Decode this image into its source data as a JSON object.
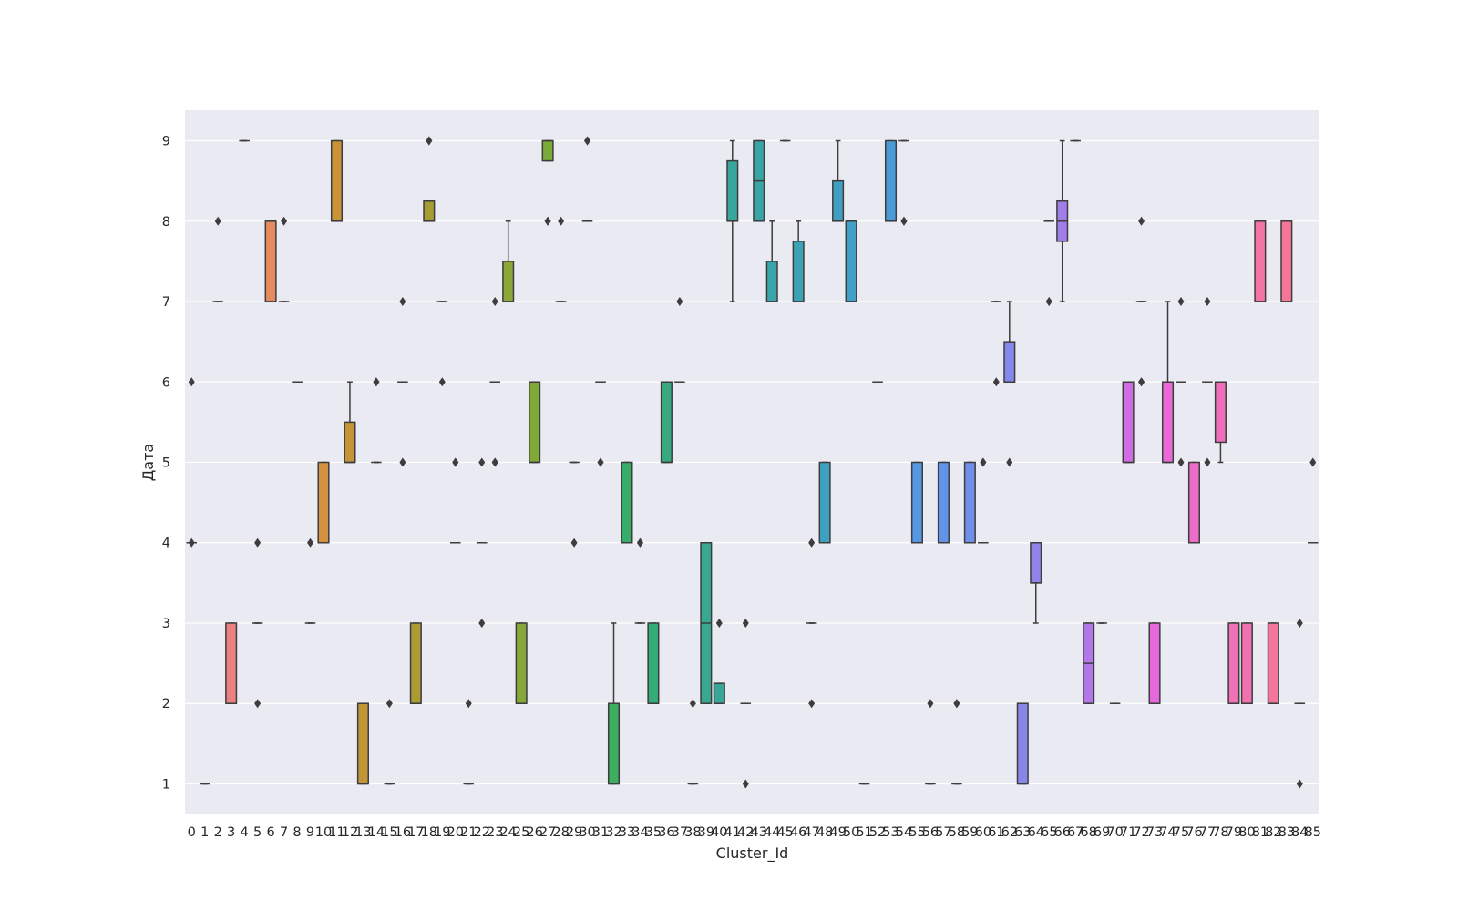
{
  "chart_data": {
    "type": "box",
    "xlabel": "Cluster_Id",
    "ylabel": "Дата",
    "ylim": [
      0.62,
      9.38
    ],
    "yticks": [
      1,
      2,
      3,
      4,
      5,
      6,
      7,
      8,
      9
    ],
    "grid": true,
    "background": "#eaeaf2",
    "categories": [
      "0",
      "1",
      "2",
      "3",
      "4",
      "5",
      "6",
      "7",
      "8",
      "9",
      "10",
      "11",
      "12",
      "13",
      "14",
      "15",
      "16",
      "17",
      "18",
      "19",
      "20",
      "21",
      "22",
      "23",
      "24",
      "25",
      "26",
      "27",
      "28",
      "29",
      "30",
      "31",
      "32",
      "33",
      "34",
      "35",
      "36",
      "37",
      "38",
      "39",
      "40",
      "41",
      "42",
      "43",
      "44",
      "45",
      "46",
      "47",
      "48",
      "49",
      "50",
      "51",
      "52",
      "53",
      "54",
      "55",
      "56",
      "57",
      "58",
      "59",
      "60",
      "61",
      "62",
      "63",
      "64",
      "65",
      "66",
      "67",
      "68",
      "69",
      "70",
      "71",
      "72",
      "73",
      "74",
      "75",
      "76",
      "77",
      "78",
      "79",
      "80",
      "81",
      "82",
      "83",
      "84",
      "85"
    ],
    "boxes": [
      {
        "q1": 4,
        "med": 4,
        "q3": 4,
        "wlo": 4,
        "whi": 4,
        "fliers": [
          6,
          4
        ],
        "color": "#f77189"
      },
      {
        "q1": 1,
        "med": 1,
        "q3": 1,
        "wlo": 1,
        "whi": 1,
        "fliers": [],
        "color": "#f7738a"
      },
      {
        "q1": 7,
        "med": 7,
        "q3": 7,
        "wlo": 7,
        "whi": 7,
        "fliers": [
          8
        ],
        "color": "#f7758b"
      },
      {
        "q1": 2,
        "med": 2,
        "q3": 3,
        "wlo": 2,
        "whi": 3,
        "fliers": [],
        "color": "#e8817f"
      },
      {
        "q1": 9,
        "med": 9,
        "q3": 9,
        "wlo": 9,
        "whi": 9,
        "fliers": [],
        "color": "#e88479"
      },
      {
        "q1": 3,
        "med": 3,
        "q3": 3,
        "wlo": 3,
        "whi": 3,
        "fliers": [
          4,
          2
        ],
        "color": "#e88674"
      },
      {
        "q1": 7,
        "med": 7,
        "q3": 8,
        "wlo": 7,
        "whi": 8,
        "fliers": [],
        "color": "#e48a5f"
      },
      {
        "q1": 7,
        "med": 7,
        "q3": 7,
        "wlo": 7,
        "whi": 7,
        "fliers": [
          8
        ],
        "color": "#e08c55"
      },
      {
        "q1": 6,
        "med": 6,
        "q3": 6,
        "wlo": 6,
        "whi": 6,
        "fliers": [],
        "color": "#dc8f4c"
      },
      {
        "q1": 3,
        "med": 3,
        "q3": 3,
        "wlo": 3,
        "whi": 3,
        "fliers": [
          4
        ],
        "color": "#d7913f"
      },
      {
        "q1": 4,
        "med": 4,
        "q3": 5,
        "wlo": 4,
        "whi": 5,
        "fliers": [],
        "color": "#d49240"
      },
      {
        "q1": 8,
        "med": 8,
        "q3": 9,
        "wlo": 8,
        "whi": 9,
        "fliers": [],
        "color": "#c99337"
      },
      {
        "q1": 5,
        "med": 5,
        "q3": 5.5,
        "wlo": 5,
        "whi": 6,
        "fliers": [],
        "color": "#c59438"
      },
      {
        "q1": 1,
        "med": 1,
        "q3": 2,
        "wlo": 1,
        "whi": 2,
        "fliers": [],
        "color": "#c19637"
      },
      {
        "q1": 5,
        "med": 5,
        "q3": 5,
        "wlo": 5,
        "whi": 5,
        "fliers": [
          6,
          6
        ],
        "color": "#bb9836"
      },
      {
        "q1": 1,
        "med": 1,
        "q3": 1,
        "wlo": 1,
        "whi": 1,
        "fliers": [
          2
        ],
        "color": "#b59a36"
      },
      {
        "q1": 6,
        "med": 6,
        "q3": 6,
        "wlo": 6,
        "whi": 6,
        "fliers": [
          7,
          5
        ],
        "color": "#b09c35"
      },
      {
        "q1": 2,
        "med": 2,
        "q3": 3,
        "wlo": 2,
        "whi": 3,
        "fliers": [],
        "color": "#ab9c34"
      },
      {
        "q1": 8,
        "med": 8,
        "q3": 8.25,
        "wlo": 8,
        "whi": 8.25,
        "fliers": [
          9,
          9
        ],
        "color": "#a59c34"
      },
      {
        "q1": 7,
        "med": 7,
        "q3": 7,
        "wlo": 7,
        "whi": 7,
        "fliers": [
          6
        ],
        "color": "#a19e33"
      },
      {
        "q1": 4,
        "med": 4,
        "q3": 4,
        "wlo": 4,
        "whi": 4,
        "fliers": [
          5,
          5
        ],
        "color": "#9da033"
      },
      {
        "q1": 1,
        "med": 1,
        "q3": 1,
        "wlo": 1,
        "whi": 1,
        "fliers": [
          2
        ],
        "color": "#98a233"
      },
      {
        "q1": 4,
        "med": 4,
        "q3": 4,
        "wlo": 4,
        "whi": 4,
        "fliers": [
          5,
          3
        ],
        "color": "#93a333"
      },
      {
        "q1": 6,
        "med": 6,
        "q3": 6,
        "wlo": 6,
        "whi": 6,
        "fliers": [
          7,
          5,
          5
        ],
        "color": "#8ea533"
      },
      {
        "q1": 7,
        "med": 7,
        "q3": 7.5,
        "wlo": 7,
        "whi": 8,
        "fliers": [],
        "color": "#8ca638"
      },
      {
        "q1": 2,
        "med": 2,
        "q3": 3,
        "wlo": 2,
        "whi": 3,
        "fliers": [],
        "color": "#86a838"
      },
      {
        "q1": 5,
        "med": 5,
        "q3": 6,
        "wlo": 5,
        "whi": 6,
        "fliers": [],
        "color": "#80a938"
      },
      {
        "q1": 8.75,
        "med": 9,
        "q3": 9,
        "wlo": 8.75,
        "whi": 9,
        "fliers": [
          8,
          8
        ],
        "color": "#7aaa38"
      },
      {
        "q1": 7,
        "med": 7,
        "q3": 7,
        "wlo": 7,
        "whi": 7,
        "fliers": [
          8
        ],
        "color": "#72ab3c"
      },
      {
        "q1": 5,
        "med": 5,
        "q3": 5,
        "wlo": 5,
        "whi": 5,
        "fliers": [
          4
        ],
        "color": "#68ac44"
      },
      {
        "q1": 8,
        "med": 8,
        "q3": 8,
        "wlo": 8,
        "whi": 8,
        "fliers": [
          9,
          9
        ],
        "color": "#5bad4f"
      },
      {
        "q1": 6,
        "med": 6,
        "q3": 6,
        "wlo": 6,
        "whi": 6,
        "fliers": [
          5,
          5
        ],
        "color": "#4dae58"
      },
      {
        "q1": 1,
        "med": 1,
        "q3": 2,
        "wlo": 1,
        "whi": 3,
        "fliers": [],
        "color": "#3cae5e"
      },
      {
        "q1": 4,
        "med": 4,
        "q3": 5,
        "wlo": 4,
        "whi": 5,
        "fliers": [],
        "color": "#36ad68"
      },
      {
        "q1": 3,
        "med": 3,
        "q3": 3,
        "wlo": 3,
        "whi": 3,
        "fliers": [
          4,
          4
        ],
        "color": "#35ac70"
      },
      {
        "q1": 2,
        "med": 2,
        "q3": 3,
        "wlo": 2,
        "whi": 3,
        "fliers": [],
        "color": "#35ab77"
      },
      {
        "q1": 5,
        "med": 5,
        "q3": 6,
        "wlo": 5,
        "whi": 6,
        "fliers": [],
        "color": "#36aa7e"
      },
      {
        "q1": 6,
        "med": 6,
        "q3": 6,
        "wlo": 6,
        "whi": 6,
        "fliers": [
          7
        ],
        "color": "#36a985"
      },
      {
        "q1": 1,
        "med": 1,
        "q3": 1,
        "wlo": 1,
        "whi": 1,
        "fliers": [
          2
        ],
        "color": "#37a98b"
      },
      {
        "q1": 2,
        "med": 3,
        "q3": 4,
        "wlo": 2,
        "whi": 4,
        "fliers": [],
        "color": "#38a891"
      },
      {
        "q1": 2,
        "med": 2,
        "q3": 2.25,
        "wlo": 2,
        "whi": 2.25,
        "fliers": [
          3
        ],
        "color": "#38a797"
      },
      {
        "q1": 8,
        "med": 8,
        "q3": 8.75,
        "wlo": 7,
        "whi": 9,
        "fliers": [],
        "color": "#39a69c"
      },
      {
        "q1": 2,
        "med": 2,
        "q3": 2,
        "wlo": 2,
        "whi": 2,
        "fliers": [
          3,
          1
        ],
        "color": "#39a6a1"
      },
      {
        "q1": 8,
        "med": 8.5,
        "q3": 9,
        "wlo": 8,
        "whi": 9,
        "fliers": [],
        "color": "#3aa5a6"
      },
      {
        "q1": 7,
        "med": 7,
        "q3": 7.5,
        "wlo": 7,
        "whi": 8,
        "fliers": [],
        "color": "#3aa4ab"
      },
      {
        "q1": 9,
        "med": 9,
        "q3": 9,
        "wlo": 9,
        "whi": 9,
        "fliers": [],
        "color": "#3ba3b0"
      },
      {
        "q1": 7,
        "med": 7,
        "q3": 7.75,
        "wlo": 7,
        "whi": 8,
        "fliers": [],
        "color": "#3ca3b5"
      },
      {
        "q1": 3,
        "med": 3,
        "q3": 3,
        "wlo": 3,
        "whi": 3,
        "fliers": [
          4,
          2
        ],
        "color": "#3da2ba"
      },
      {
        "q1": 4,
        "med": 4,
        "q3": 5,
        "wlo": 4,
        "whi": 5,
        "fliers": [],
        "color": "#3ea1bf"
      },
      {
        "q1": 8,
        "med": 8,
        "q3": 8.5,
        "wlo": 8,
        "whi": 9,
        "fliers": [],
        "color": "#40a0c3"
      },
      {
        "q1": 7,
        "med": 7,
        "q3": 8,
        "wlo": 7,
        "whi": 8,
        "fliers": [],
        "color": "#429fc8"
      },
      {
        "q1": 1,
        "med": 1,
        "q3": 1,
        "wlo": 1,
        "whi": 1,
        "fliers": [],
        "color": "#449ecd"
      },
      {
        "q1": 6,
        "med": 6,
        "q3": 6,
        "wlo": 6,
        "whi": 6,
        "fliers": [],
        "color": "#479dd2"
      },
      {
        "q1": 8,
        "med": 8,
        "q3": 9,
        "wlo": 8,
        "whi": 9,
        "fliers": [],
        "color": "#4a9bd8"
      },
      {
        "q1": 9,
        "med": 9,
        "q3": 9,
        "wlo": 9,
        "whi": 9,
        "fliers": [
          8,
          8
        ],
        "color": "#4f99dd"
      },
      {
        "q1": 4,
        "med": 4,
        "q3": 5,
        "wlo": 4,
        "whi": 5,
        "fliers": [],
        "color": "#5497e2"
      },
      {
        "q1": 1,
        "med": 1,
        "q3": 1,
        "wlo": 1,
        "whi": 1,
        "fliers": [
          2
        ],
        "color": "#5a95e6"
      },
      {
        "q1": 4,
        "med": 4,
        "q3": 5,
        "wlo": 4,
        "whi": 5,
        "fliers": [],
        "color": "#6193e9"
      },
      {
        "q1": 1,
        "med": 1,
        "q3": 1,
        "wlo": 1,
        "whi": 1,
        "fliers": [
          2,
          2
        ],
        "color": "#6991ea"
      },
      {
        "q1": 4,
        "med": 4,
        "q3": 5,
        "wlo": 4,
        "whi": 5,
        "fliers": [],
        "color": "#708fea"
      },
      {
        "q1": 4,
        "med": 4,
        "q3": 4,
        "wlo": 4,
        "whi": 4,
        "fliers": [
          5,
          5
        ],
        "color": "#778cea"
      },
      {
        "q1": 7,
        "med": 7,
        "q3": 7,
        "wlo": 7,
        "whi": 7,
        "fliers": [
          6
        ],
        "color": "#7e8aea"
      },
      {
        "q1": 6,
        "med": 6,
        "q3": 6.5,
        "wlo": 6,
        "whi": 7,
        "fliers": [
          5
        ],
        "color": "#8388ea"
      },
      {
        "q1": 1,
        "med": 1,
        "q3": 2,
        "wlo": 1,
        "whi": 2,
        "fliers": [],
        "color": "#8986ea"
      },
      {
        "q1": 3.5,
        "med": 3.5,
        "q3": 4,
        "wlo": 3,
        "whi": 4,
        "fliers": [],
        "color": "#9183ea"
      },
      {
        "q1": 8,
        "med": 8,
        "q3": 8,
        "wlo": 8,
        "whi": 8,
        "fliers": [
          7,
          7
        ],
        "color": "#9980ea"
      },
      {
        "q1": 7.75,
        "med": 8,
        "q3": 8.25,
        "wlo": 7,
        "whi": 9,
        "fliers": [],
        "color": "#a17de9"
      },
      {
        "q1": 9,
        "med": 9,
        "q3": 9,
        "wlo": 9,
        "whi": 9,
        "fliers": [],
        "color": "#a97ae9"
      },
      {
        "q1": 2,
        "med": 2.5,
        "q3": 3,
        "wlo": 2,
        "whi": 3,
        "fliers": [],
        "color": "#b277e8"
      },
      {
        "q1": 3,
        "med": 3,
        "q3": 3,
        "wlo": 3,
        "whi": 3,
        "fliers": [],
        "color": "#bb74e7"
      },
      {
        "q1": 2,
        "med": 2,
        "q3": 2,
        "wlo": 2,
        "whi": 2,
        "fliers": [],
        "color": "#c571e6"
      },
      {
        "q1": 5,
        "med": 5,
        "q3": 6,
        "wlo": 5,
        "whi": 6,
        "fliers": [],
        "color": "#d16de4"
      },
      {
        "q1": 7,
        "med": 7,
        "q3": 7,
        "wlo": 7,
        "whi": 7,
        "fliers": [
          8,
          6,
          6
        ],
        "color": "#dc6ae1"
      },
      {
        "q1": 2,
        "med": 2,
        "q3": 3,
        "wlo": 2,
        "whi": 3,
        "fliers": [],
        "color": "#e568dc"
      },
      {
        "q1": 5,
        "med": 5,
        "q3": 6,
        "wlo": 5,
        "whi": 7,
        "fliers": [],
        "color": "#e96ad6"
      },
      {
        "q1": 6,
        "med": 6,
        "q3": 6,
        "wlo": 6,
        "whi": 6,
        "fliers": [
          7,
          5
        ],
        "color": "#eb6bd0"
      },
      {
        "q1": 4,
        "med": 4,
        "q3": 5,
        "wlo": 4,
        "whi": 5,
        "fliers": [],
        "color": "#ed6cca"
      },
      {
        "q1": 6,
        "med": 6,
        "q3": 6,
        "wlo": 6,
        "whi": 6,
        "fliers": [
          7,
          5
        ],
        "color": "#ef6ec4"
      },
      {
        "q1": 5.25,
        "med": 6,
        "q3": 6,
        "wlo": 5,
        "whi": 6,
        "fliers": [],
        "color": "#f06fbd"
      },
      {
        "q1": 2,
        "med": 2,
        "q3": 3,
        "wlo": 2,
        "whi": 3,
        "fliers": [],
        "color": "#f071b6"
      },
      {
        "q1": 2,
        "med": 2,
        "q3": 3,
        "wlo": 2,
        "whi": 3,
        "fliers": [],
        "color": "#f172ae"
      },
      {
        "q1": 7,
        "med": 7,
        "q3": 8,
        "wlo": 7,
        "whi": 8,
        "fliers": [],
        "color": "#f274a6"
      },
      {
        "q1": 2,
        "med": 2,
        "q3": 3,
        "wlo": 2,
        "whi": 3,
        "fliers": [],
        "color": "#f3769f"
      },
      {
        "q1": 7,
        "med": 7,
        "q3": 8,
        "wlo": 7,
        "whi": 8,
        "fliers": [],
        "color": "#f47797"
      },
      {
        "q1": 2,
        "med": 2,
        "q3": 2,
        "wlo": 2,
        "whi": 2,
        "fliers": [
          3,
          1
        ],
        "color": "#f5778f"
      },
      {
        "q1": 4,
        "med": 4,
        "q3": 4,
        "wlo": 4,
        "whi": 4,
        "fliers": [
          5
        ],
        "color": "#f6758c"
      }
    ]
  }
}
